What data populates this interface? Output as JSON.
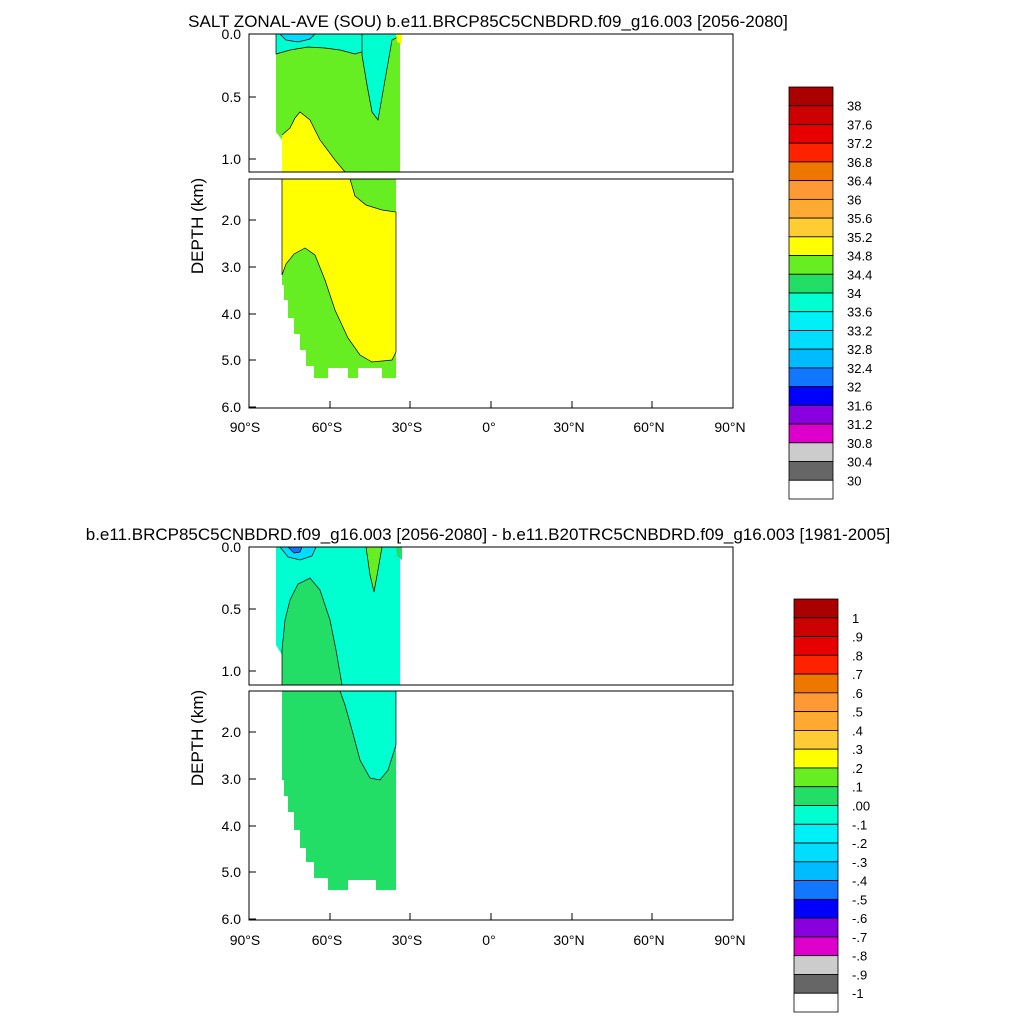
{
  "chart_data": [
    {
      "type": "heatmap",
      "subtype": "filled-contour depth-latitude section",
      "title": "SALT ZONAL-AVE (SOU) b.e11.BRCP85C5CNBDRD.f09_g16.003 [2056-2080]",
      "ylabel": "DEPTH (km)",
      "xlabel": "",
      "x_ticks": [
        "90°S",
        "60°S",
        "30°S",
        "0°",
        "30°N",
        "60°N",
        "90°N"
      ],
      "xlim": [
        -90,
        90
      ],
      "y_ticks_upper": [
        "0.0",
        "0.5",
        "1.0"
      ],
      "y_ticks_lower": [
        "2.0",
        "3.0",
        "4.0",
        "5.0",
        "6.0"
      ],
      "ylim_upper_km": [
        0,
        1.1
      ],
      "ylim_lower_km": [
        1.1,
        6.0
      ],
      "data_lat_range": [
        -78,
        -34
      ],
      "regions": [
        {
          "value_range": "33.6-34",
          "color": "#00ffd0",
          "area": "surface 0-0.3 km, 75°S-48°S"
        },
        {
          "value_range": "33.2-33.6",
          "color": "#00e0ff",
          "area": "near-surface pocket ~72°S"
        },
        {
          "value_range": "34-34.4",
          "color": "#66ee22",
          "area": "0.3-1.1 km polar side, upper ocean north of 50°S, deep water south of 55°S"
        },
        {
          "value_range": "34.4-34.8",
          "color": "#ffff00",
          "area": "intermediate and deep water 45°S-34°S"
        }
      ],
      "colorbar": {
        "labels": [
          "38",
          "37.6",
          "37.2",
          "36.8",
          "36.4",
          "36",
          "35.6",
          "35.2",
          "34.8",
          "34.4",
          "34",
          "33.6",
          "33.2",
          "32.8",
          "32.4",
          "32",
          "31.6",
          "31.2",
          "30.8",
          "30.4",
          "30"
        ],
        "colors": [
          "#aa0000",
          "#cc0000",
          "#e60000",
          "#ff2200",
          "#ee7700",
          "#ff9933",
          "#ffaa33",
          "#ffcc33",
          "#ffff00",
          "#66ee22",
          "#22dd66",
          "#00ffd0",
          "#00f0f8",
          "#00ddff",
          "#00bbff",
          "#1177ff",
          "#0000ff",
          "#8800dd",
          "#dd00cc",
          "#cccccc",
          "#666666",
          "#ffffff"
        ]
      }
    },
    {
      "type": "heatmap",
      "subtype": "filled-contour depth-latitude difference section",
      "title": "b.e11.BRCP85C5CNBDRD.f09_g16.003 [2056-2080] - b.e11.B20TRC5CNBDRD.f09_g16.003 [1981-2005]",
      "ylabel": "DEPTH (km)",
      "xlabel": "",
      "x_ticks": [
        "90°S",
        "60°S",
        "30°S",
        "0°",
        "30°N",
        "60°N",
        "90°N"
      ],
      "xlim": [
        -90,
        90
      ],
      "y_ticks_upper": [
        "0.0",
        "0.5",
        "1.0"
      ],
      "y_ticks_lower": [
        "2.0",
        "3.0",
        "4.0",
        "5.0",
        "6.0"
      ],
      "ylim_upper_km": [
        0,
        1.1
      ],
      "ylim_lower_km": [
        1.1,
        6.0
      ],
      "data_lat_range": [
        -78,
        -34
      ],
      "regions": [
        {
          "value_range": "0.00-0.1",
          "color": "#22dd66",
          "area": "deep and intermediate water south of 50°S"
        },
        {
          "value_range": "-0.1-0.00",
          "color": "#00ffd0",
          "area": "upper ocean and northern deep water 55°S-34°S"
        },
        {
          "value_range": "-0.5 to -0.3",
          "color": "#1177ff",
          "area": "small surface minimum ~71°S"
        },
        {
          "value_range": "0.1-0.2",
          "color": "#66ee22",
          "area": "thin surface strip ~40°S"
        }
      ],
      "colorbar": {
        "labels": [
          "1",
          ".9",
          ".8",
          ".7",
          ".6",
          ".5",
          ".4",
          ".3",
          ".2",
          ".1",
          ".00",
          "-.1",
          "-.2",
          "-.3",
          "-.4",
          "-.5",
          "-.6",
          "-.7",
          "-.8",
          "-.9",
          "-1"
        ],
        "colors": [
          "#aa0000",
          "#cc0000",
          "#e60000",
          "#ff2200",
          "#ee7700",
          "#ff9933",
          "#ffaa33",
          "#ffcc33",
          "#ffff00",
          "#66ee22",
          "#22dd66",
          "#00ffd0",
          "#00f0f8",
          "#00ddff",
          "#00bbff",
          "#1177ff",
          "#0000ff",
          "#8800dd",
          "#dd00cc",
          "#cccccc",
          "#666666",
          "#ffffff"
        ]
      }
    }
  ]
}
